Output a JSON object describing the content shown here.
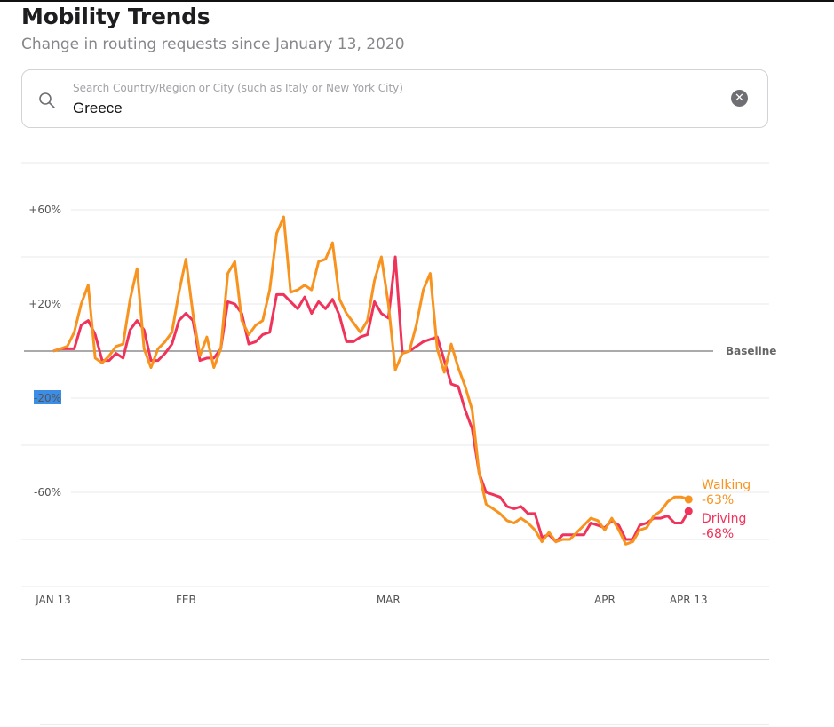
{
  "header": {
    "title": "Mobility Trends",
    "subtitle": "Change in routing requests since January 13, 2020"
  },
  "search": {
    "placeholder": "Search Country/Region or City (such as Italy or New York City)",
    "value": "Greece",
    "icon": "search-icon",
    "clear_icon": "clear-icon"
  },
  "chart_data": {
    "type": "line",
    "ylim": [
      -100,
      80
    ],
    "grid": true,
    "baseline_label": "Baseline",
    "y_ticks": [
      {
        "value": 60,
        "label": "+60%"
      },
      {
        "value": 20,
        "label": "+20%"
      },
      {
        "value": -20,
        "label": "-20%"
      },
      {
        "value": -60,
        "label": "-60%"
      }
    ],
    "y_gridlines": [
      80,
      60,
      40,
      20,
      0,
      -20,
      -40,
      -60,
      -80,
      -100
    ],
    "x_ticks": [
      {
        "index": 0,
        "label": "JAN 13"
      },
      {
        "index": 19,
        "label": "FEB"
      },
      {
        "index": 48,
        "label": "MAR"
      },
      {
        "index": 79,
        "label": "APR"
      },
      {
        "index": 91,
        "label": "APR 13"
      }
    ],
    "x": [
      "Jan 13",
      "Jan 14",
      "Jan 15",
      "Jan 16",
      "Jan 17",
      "Jan 18",
      "Jan 19",
      "Jan 20",
      "Jan 21",
      "Jan 22",
      "Jan 23",
      "Jan 24",
      "Jan 25",
      "Jan 26",
      "Jan 27",
      "Jan 28",
      "Jan 29",
      "Jan 30",
      "Jan 31",
      "Feb 1",
      "Feb 2",
      "Feb 3",
      "Feb 4",
      "Feb 5",
      "Feb 6",
      "Feb 7",
      "Feb 8",
      "Feb 9",
      "Feb 10",
      "Feb 11",
      "Feb 12",
      "Feb 13",
      "Feb 14",
      "Feb 15",
      "Feb 16",
      "Feb 17",
      "Feb 18",
      "Feb 19",
      "Feb 20",
      "Feb 21",
      "Feb 22",
      "Feb 23",
      "Feb 24",
      "Feb 25",
      "Feb 26",
      "Feb 27",
      "Feb 28",
      "Feb 29",
      "Mar 1",
      "Mar 2",
      "Mar 3",
      "Mar 4",
      "Mar 5",
      "Mar 6",
      "Mar 7",
      "Mar 8",
      "Mar 9",
      "Mar 10",
      "Mar 11",
      "Mar 12",
      "Mar 13",
      "Mar 14",
      "Mar 15",
      "Mar 16",
      "Mar 17",
      "Mar 18",
      "Mar 19",
      "Mar 20",
      "Mar 21",
      "Mar 22",
      "Mar 23",
      "Mar 24",
      "Mar 25",
      "Mar 26",
      "Mar 27",
      "Mar 28",
      "Mar 29",
      "Mar 30",
      "Mar 31",
      "Apr 1",
      "Apr 2",
      "Apr 3",
      "Apr 4",
      "Apr 5",
      "Apr 6",
      "Apr 7",
      "Apr 8",
      "Apr 9",
      "Apr 10",
      "Apr 11",
      "Apr 12",
      "Apr 13"
    ],
    "series": [
      {
        "name": "Walking",
        "end_label": "-63%",
        "color": "#f7931e",
        "values": [
          0,
          1,
          2,
          8,
          20,
          28,
          -3,
          -5,
          -2,
          2,
          3,
          22,
          35,
          1,
          -7,
          1,
          4,
          8,
          25,
          39,
          16,
          -2,
          6,
          -7,
          1,
          33,
          38,
          13,
          7,
          11,
          13,
          26,
          50,
          57,
          25,
          26,
          28,
          26,
          38,
          39,
          46,
          22,
          16,
          12,
          8,
          13,
          30,
          40,
          20,
          -8,
          -1,
          0,
          11,
          26,
          33,
          1,
          -9,
          3,
          -7,
          -15,
          -25,
          -52,
          -65,
          -67,
          -69,
          -72,
          -73,
          -71,
          -73,
          -76,
          -81,
          -77,
          -81,
          -80,
          -80,
          -77,
          -74,
          -71,
          -72,
          -76,
          -71,
          -76,
          -82,
          -81,
          -76,
          -75,
          -70,
          -68,
          -64,
          -62,
          -62,
          -63
        ]
      },
      {
        "name": "Driving",
        "end_label": "-68%",
        "color": "#f0335a",
        "values": [
          0,
          1,
          1,
          1,
          11,
          13,
          7,
          -4,
          -4,
          -1,
          -3,
          9,
          13,
          9,
          -4,
          -4,
          -1,
          3,
          13,
          16,
          13,
          -4,
          -3,
          -3,
          1,
          21,
          20,
          16,
          3,
          4,
          7,
          8,
          24,
          24,
          21,
          18,
          23,
          16,
          21,
          18,
          22,
          15,
          4,
          4,
          6,
          7,
          21,
          16,
          14,
          40,
          -1,
          0,
          2,
          4,
          5,
          6,
          -4,
          -14,
          -15,
          -25,
          -33,
          -52,
          -60,
          -61,
          -62,
          -66,
          -67,
          -66,
          -69,
          -69,
          -79,
          -78,
          -81,
          -78,
          -78,
          -78,
          -78,
          -73,
          -74,
          -75,
          -72,
          -74,
          -80,
          -80,
          -74,
          -73,
          -71,
          -71,
          -70,
          -73,
          -73,
          -68
        ]
      }
    ]
  }
}
